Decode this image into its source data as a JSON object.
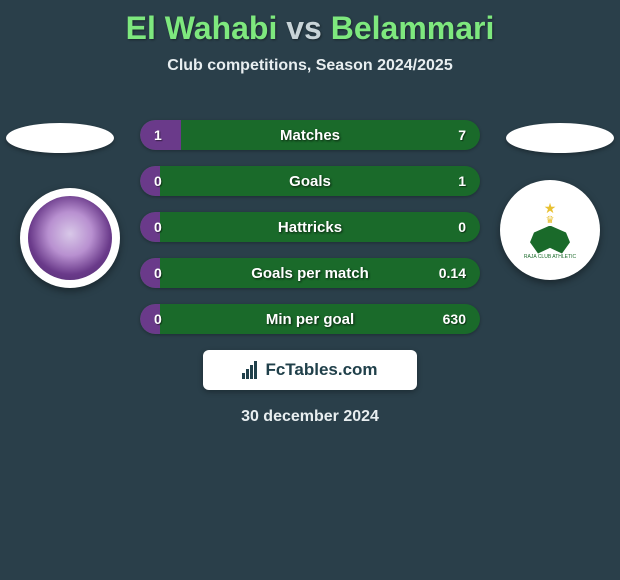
{
  "title": {
    "left": "El Wahabi",
    "mid": "vs",
    "right": "Belammari"
  },
  "subtitle": "Club competitions, Season 2024/2025",
  "colors": {
    "left_team": "#6a3a8a",
    "right_team": "#1a6a2a",
    "title_accent": "#7ee87e",
    "background": "#2a3f4a"
  },
  "stats": [
    {
      "label": "Matches",
      "left_val": "1",
      "right_val": "7",
      "left_pct": 12
    },
    {
      "label": "Goals",
      "left_val": "0",
      "right_val": "1",
      "left_pct": 6
    },
    {
      "label": "Hattricks",
      "left_val": "0",
      "right_val": "0",
      "left_pct": 6
    },
    {
      "label": "Goals per match",
      "left_val": "0",
      "right_val": "0.14",
      "left_pct": 6
    },
    {
      "label": "Min per goal",
      "left_val": "0",
      "right_val": "630",
      "left_pct": 6
    }
  ],
  "brand": "FcTables.com",
  "date": "30 december 2024",
  "clubs": {
    "left_name": "left-club",
    "right_name": "right-club"
  }
}
